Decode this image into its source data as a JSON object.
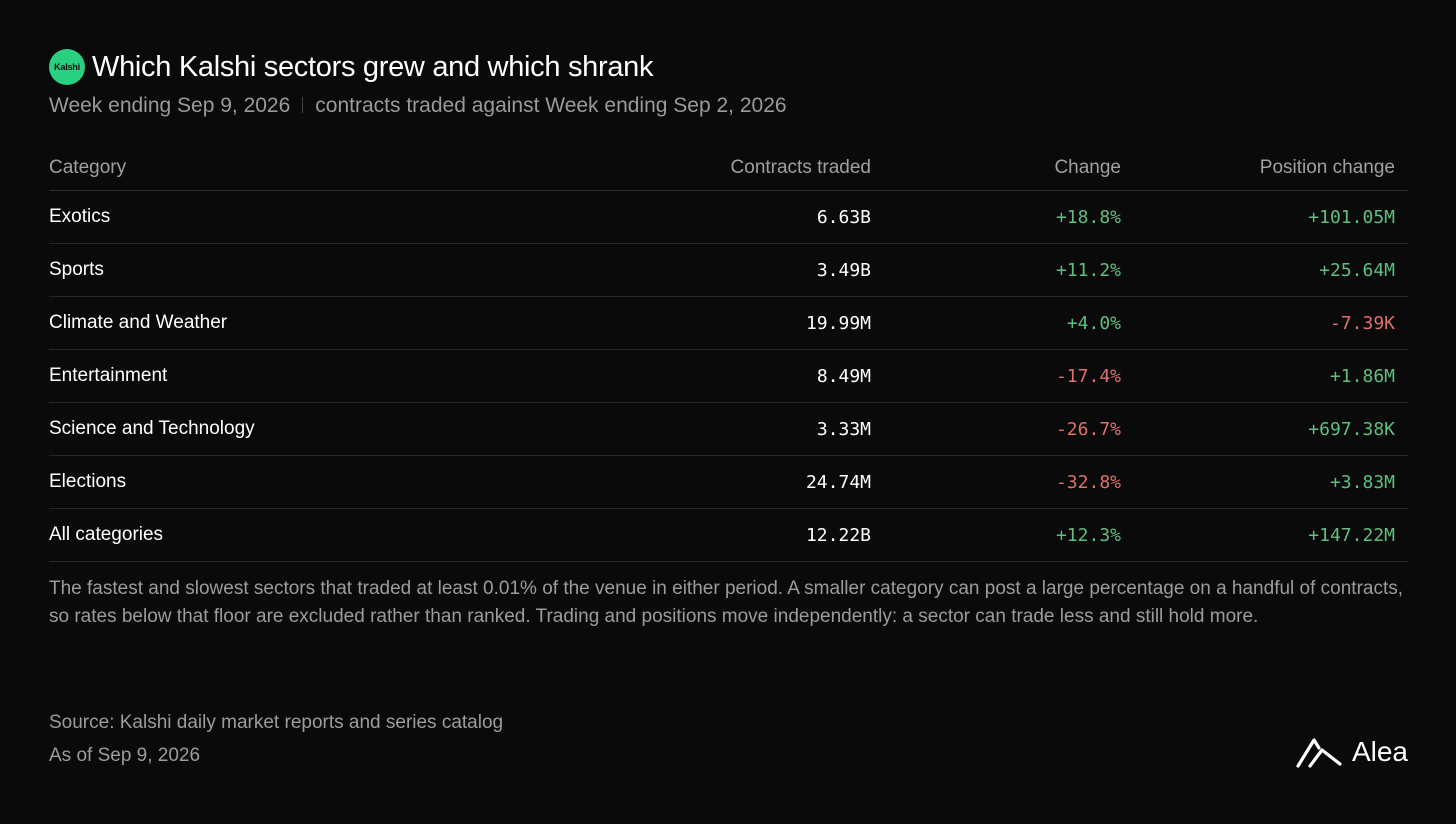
{
  "header": {
    "logo_text": "Kalshi",
    "title": "Which Kalshi sectors grew and which shrank",
    "subtitle_left": "Week ending Sep 9, 2026",
    "subtitle_right": "contracts traded against Week ending Sep 2, 2026"
  },
  "table": {
    "columns": [
      "Category",
      "Contracts traded",
      "Change",
      "Position change"
    ],
    "rows": [
      {
        "category": "Exotics",
        "contracts": "6.63B",
        "change": "+18.8%",
        "position": "+101.05M"
      },
      {
        "category": "Sports",
        "contracts": "3.49B",
        "change": "+11.2%",
        "position": "+25.64M"
      },
      {
        "category": "Climate and Weather",
        "contracts": "19.99M",
        "change": "+4.0%",
        "position": "-7.39K"
      },
      {
        "category": "Entertainment",
        "contracts": "8.49M",
        "change": "-17.4%",
        "position": "+1.86M"
      },
      {
        "category": "Science and Technology",
        "contracts": "3.33M",
        "change": "-26.7%",
        "position": "+697.38K"
      },
      {
        "category": "Elections",
        "contracts": "24.74M",
        "change": "-32.8%",
        "position": "+3.83M"
      },
      {
        "category": "All categories",
        "contracts": "12.22B",
        "change": "+12.3%",
        "position": "+147.22M"
      }
    ]
  },
  "note": "The fastest and slowest sectors that traded at least 0.01% of the venue in either period. A smaller category can post a large percentage on a handful of contracts, so rates below that floor are excluded rather than ranked. Trading and positions move independently: a sector can trade less and still hold more.",
  "footer": {
    "source": "Source: Kalshi daily market reports and series catalog",
    "as_of": "As of Sep 9, 2026",
    "brand": "Alea"
  },
  "colors": {
    "background": "#0a0a0a",
    "logo_green": "#28d07f",
    "positive": "#5fbf7f",
    "negative": "#e0706a"
  },
  "icons": [
    "kalshi-logo-icon",
    "alea-logo-icon"
  ]
}
